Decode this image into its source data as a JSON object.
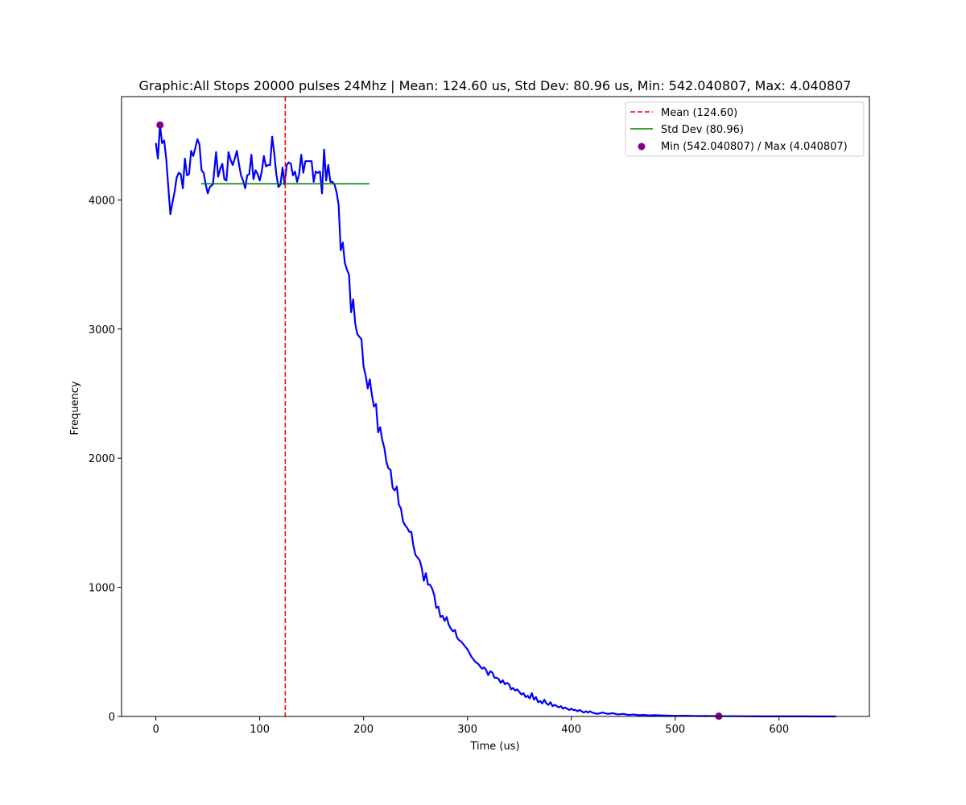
{
  "chart_data": {
    "type": "line",
    "title": "Graphic:All Stops 20000 pulses 24Mhz | Mean: 124.60 us, Std Dev: 80.96 us, Min: 542.040807, Max: 4.040807",
    "xlabel": "Time (us)",
    "ylabel": "Frequency",
    "xlim": [
      -33,
      687
    ],
    "ylim": [
      0,
      4800
    ],
    "x_ticks": [
      0,
      100,
      200,
      300,
      400,
      500,
      600
    ],
    "y_ticks": [
      0,
      1000,
      2000,
      3000,
      4000
    ],
    "grid": false,
    "legend_position": "top-right",
    "legend": [
      {
        "label": "Mean (124.60)",
        "style": "dashed",
        "color": "#ff0000"
      },
      {
        "label": "Std Dev (80.96)",
        "style": "solid",
        "color": "#008000"
      },
      {
        "label": "Min (542.040807) / Max (4.040807)",
        "style": "marker",
        "color": "#800080"
      }
    ],
    "series": [
      {
        "color": "#0000ff",
        "points": [
          [
            0,
            4440
          ],
          [
            2,
            4320
          ],
          [
            4,
            4580
          ],
          [
            6,
            4440
          ],
          [
            8,
            4460
          ],
          [
            10,
            4320
          ],
          [
            12,
            4100
          ],
          [
            14,
            3890
          ],
          [
            16,
            3980
          ],
          [
            18,
            4060
          ],
          [
            20,
            4170
          ],
          [
            22,
            4210
          ],
          [
            24,
            4200
          ],
          [
            26,
            4090
          ],
          [
            28,
            4320
          ],
          [
            30,
            4190
          ],
          [
            32,
            4200
          ],
          [
            34,
            4380
          ],
          [
            36,
            4340
          ],
          [
            38,
            4400
          ],
          [
            40,
            4470
          ],
          [
            42,
            4430
          ],
          [
            44,
            4230
          ],
          [
            46,
            4210
          ],
          [
            48,
            4120
          ],
          [
            50,
            4050
          ],
          [
            52,
            4100
          ],
          [
            55,
            4120
          ],
          [
            58,
            4370
          ],
          [
            60,
            4180
          ],
          [
            62,
            4240
          ],
          [
            64,
            4280
          ],
          [
            66,
            4160
          ],
          [
            68,
            4150
          ],
          [
            70,
            4370
          ],
          [
            72,
            4310
          ],
          [
            74,
            4270
          ],
          [
            76,
            4320
          ],
          [
            78,
            4380
          ],
          [
            80,
            4280
          ],
          [
            82,
            4190
          ],
          [
            84,
            4150
          ],
          [
            86,
            4090
          ],
          [
            88,
            4190
          ],
          [
            90,
            4200
          ],
          [
            92,
            4350
          ],
          [
            94,
            4160
          ],
          [
            96,
            4230
          ],
          [
            98,
            4200
          ],
          [
            100,
            4150
          ],
          [
            102,
            4220
          ],
          [
            104,
            4340
          ],
          [
            106,
            4260
          ],
          [
            108,
            4270
          ],
          [
            110,
            4270
          ],
          [
            112,
            4490
          ],
          [
            114,
            4360
          ],
          [
            116,
            4200
          ],
          [
            118,
            4100
          ],
          [
            120,
            4120
          ],
          [
            122,
            4250
          ],
          [
            124,
            4120
          ],
          [
            126,
            4270
          ],
          [
            128,
            4290
          ],
          [
            130,
            4280
          ],
          [
            132,
            4190
          ],
          [
            134,
            4220
          ],
          [
            136,
            4140
          ],
          [
            138,
            4200
          ],
          [
            140,
            4350
          ],
          [
            142,
            4210
          ],
          [
            144,
            4300
          ],
          [
            146,
            4300
          ],
          [
            148,
            4300
          ],
          [
            150,
            4300
          ],
          [
            152,
            4140
          ],
          [
            154,
            4220
          ],
          [
            156,
            4210
          ],
          [
            158,
            4220
          ],
          [
            160,
            4050
          ],
          [
            162,
            4390
          ],
          [
            164,
            4150
          ],
          [
            166,
            4270
          ],
          [
            168,
            4140
          ],
          [
            170,
            4140
          ],
          [
            172,
            4120
          ],
          [
            174,
            4060
          ],
          [
            176,
            3960
          ],
          [
            178,
            3610
          ],
          [
            180,
            3670
          ],
          [
            182,
            3510
          ],
          [
            184,
            3460
          ],
          [
            186,
            3420
          ],
          [
            188,
            3130
          ],
          [
            190,
            3230
          ],
          [
            192,
            3040
          ],
          [
            194,
            2960
          ],
          [
            196,
            2940
          ],
          [
            198,
            2920
          ],
          [
            200,
            2710
          ],
          [
            202,
            2640
          ],
          [
            204,
            2540
          ],
          [
            206,
            2610
          ],
          [
            208,
            2490
          ],
          [
            210,
            2400
          ],
          [
            212,
            2420
          ],
          [
            214,
            2200
          ],
          [
            216,
            2240
          ],
          [
            218,
            2140
          ],
          [
            220,
            2080
          ],
          [
            222,
            1970
          ],
          [
            224,
            1920
          ],
          [
            226,
            1910
          ],
          [
            228,
            1770
          ],
          [
            230,
            1750
          ],
          [
            232,
            1780
          ],
          [
            234,
            1640
          ],
          [
            236,
            1610
          ],
          [
            238,
            1510
          ],
          [
            240,
            1480
          ],
          [
            242,
            1460
          ],
          [
            244,
            1430
          ],
          [
            246,
            1430
          ],
          [
            248,
            1320
          ],
          [
            250,
            1250
          ],
          [
            252,
            1230
          ],
          [
            254,
            1210
          ],
          [
            256,
            1150
          ],
          [
            258,
            1050
          ],
          [
            260,
            1110
          ],
          [
            262,
            1020
          ],
          [
            264,
            1020
          ],
          [
            266,
            990
          ],
          [
            268,
            940
          ],
          [
            270,
            840
          ],
          [
            272,
            850
          ],
          [
            274,
            770
          ],
          [
            276,
            780
          ],
          [
            278,
            740
          ],
          [
            280,
            770
          ],
          [
            282,
            710
          ],
          [
            284,
            680
          ],
          [
            286,
            660
          ],
          [
            288,
            670
          ],
          [
            290,
            610
          ],
          [
            292,
            590
          ],
          [
            294,
            580
          ],
          [
            296,
            560
          ],
          [
            298,
            540
          ],
          [
            300,
            520
          ],
          [
            302,
            490
          ],
          [
            304,
            460
          ],
          [
            306,
            440
          ],
          [
            308,
            420
          ],
          [
            310,
            410
          ],
          [
            312,
            390
          ],
          [
            314,
            370
          ],
          [
            316,
            380
          ],
          [
            318,
            360
          ],
          [
            320,
            320
          ],
          [
            322,
            350
          ],
          [
            324,
            340
          ],
          [
            326,
            300
          ],
          [
            328,
            300
          ],
          [
            330,
            290
          ],
          [
            332,
            260
          ],
          [
            334,
            280
          ],
          [
            336,
            250
          ],
          [
            338,
            260
          ],
          [
            340,
            250
          ],
          [
            342,
            210
          ],
          [
            344,
            220
          ],
          [
            346,
            200
          ],
          [
            348,
            210
          ],
          [
            350,
            190
          ],
          [
            352,
            170
          ],
          [
            354,
            180
          ],
          [
            356,
            150
          ],
          [
            358,
            160
          ],
          [
            360,
            140
          ],
          [
            362,
            180
          ],
          [
            364,
            130
          ],
          [
            366,
            150
          ],
          [
            368,
            110
          ],
          [
            370,
            120
          ],
          [
            372,
            100
          ],
          [
            374,
            130
          ],
          [
            376,
            100
          ],
          [
            378,
            90
          ],
          [
            380,
            110
          ],
          [
            382,
            80
          ],
          [
            384,
            90
          ],
          [
            386,
            80
          ],
          [
            388,
            70
          ],
          [
            390,
            80
          ],
          [
            392,
            60
          ],
          [
            394,
            70
          ],
          [
            396,
            60
          ],
          [
            398,
            50
          ],
          [
            400,
            60
          ],
          [
            402,
            50
          ],
          [
            404,
            50
          ],
          [
            406,
            40
          ],
          [
            408,
            50
          ],
          [
            410,
            40
          ],
          [
            412,
            30
          ],
          [
            414,
            40
          ],
          [
            416,
            30
          ],
          [
            418,
            40
          ],
          [
            420,
            30
          ],
          [
            425,
            20
          ],
          [
            430,
            30
          ],
          [
            435,
            20
          ],
          [
            440,
            25
          ],
          [
            445,
            15
          ],
          [
            450,
            20
          ],
          [
            455,
            12
          ],
          [
            460,
            15
          ],
          [
            465,
            10
          ],
          [
            470,
            12
          ],
          [
            475,
            8
          ],
          [
            480,
            10
          ],
          [
            490,
            7
          ],
          [
            500,
            5
          ],
          [
            510,
            6
          ],
          [
            520,
            3
          ],
          [
            530,
            4
          ],
          [
            542,
            2
          ],
          [
            560,
            2
          ],
          [
            580,
            1
          ],
          [
            600,
            1
          ],
          [
            620,
            1
          ],
          [
            640,
            0
          ],
          [
            655,
            0
          ]
        ]
      }
    ],
    "mean_line": {
      "x": 124.6,
      "color": "#ff0000"
    },
    "std_dev_line": {
      "x": [
        43.64,
        205.56
      ],
      "y": 4125,
      "color": "#008000"
    },
    "markers": [
      {
        "x": 4.040807,
        "y": 4580,
        "color": "#800080"
      },
      {
        "x": 542.040807,
        "y": 2,
        "color": "#800080"
      }
    ]
  }
}
